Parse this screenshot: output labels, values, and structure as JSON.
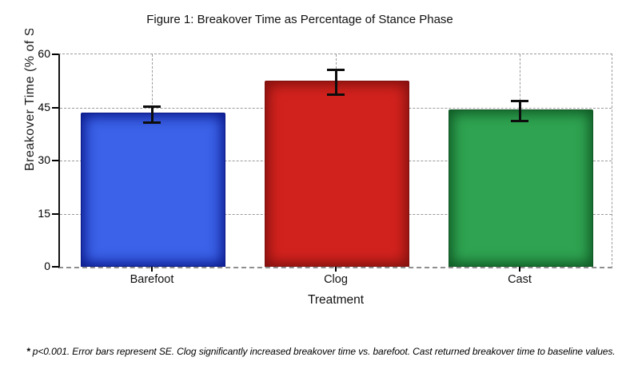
{
  "figure": {
    "footnote_star": "*",
    "footnote_text": " p<0.001. Error bars represent SE. Clog significantly increased breakover time vs. barefoot. Cast returned breakover time to baseline values."
  },
  "chart_data": {
    "type": "bar",
    "title": "Figure 1: Breakover Time as Percentage of Stance Phase",
    "xlabel": "Treatment",
    "ylabel": "Breakover Time (% of S",
    "categories": [
      "Barefoot",
      "Clog",
      "Cast"
    ],
    "values": [
      43,
      52,
      44
    ],
    "errors": [
      2.2,
      3.5,
      2.9
    ],
    "error_type": "SE",
    "ylim": [
      0,
      60
    ],
    "yticks": [
      0,
      15,
      30,
      45,
      60
    ],
    "grid": true,
    "legend": false,
    "gridline_color": "#9a9a9a",
    "error_bar_color": "#0d0d0d",
    "bar_colors": [
      {
        "name": "barefoot",
        "fill": "#3B62E8",
        "edge": "#0A1888"
      },
      {
        "name": "clog",
        "fill": "#D2221E",
        "edge": "#7E100D"
      },
      {
        "name": "cast",
        "fill": "#2FA351",
        "edge": "#0E5623"
      }
    ]
  }
}
